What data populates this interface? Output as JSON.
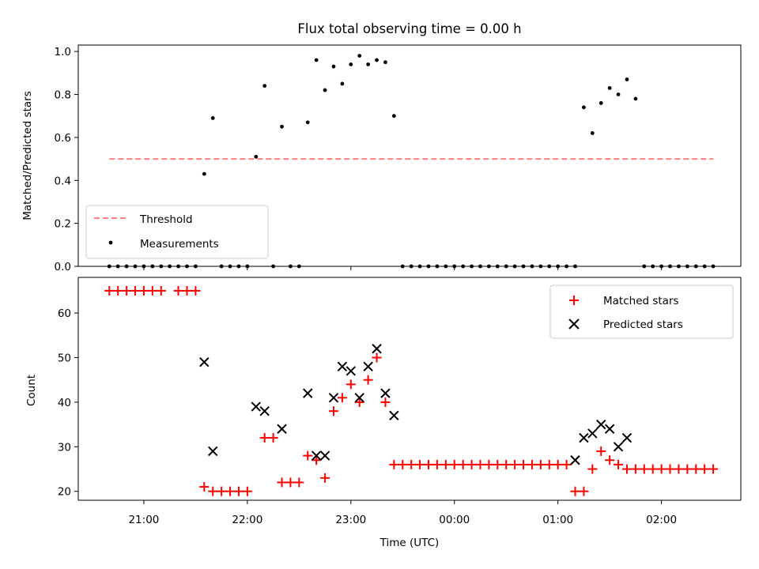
{
  "chart_data": [
    {
      "type": "scatter",
      "title": "Flux total observing time = 0.00 h",
      "xlabel": "",
      "ylabel": "Matched/Predicted stars",
      "ylim": [
        0,
        1.03
      ],
      "y_ticks": [
        "0.0",
        "0.2",
        "0.4",
        "0.6",
        "0.8",
        "1.0"
      ],
      "legend_position": "lower-left",
      "colors": {
        "threshold": "#ff7f7f",
        "measurements": "#000000"
      },
      "threshold": {
        "name": "Threshold",
        "y": 0.5,
        "x_start": "20:40",
        "x_end": "02:30"
      },
      "series": [
        {
          "name": "Measurements",
          "x": [
            "20:40",
            "20:45",
            "20:50",
            "20:55",
            "21:00",
            "21:05",
            "21:10",
            "21:15",
            "21:20",
            "21:25",
            "21:30",
            "21:35",
            "21:40",
            "21:45",
            "21:50",
            "21:55",
            "22:00",
            "22:05",
            "22:10",
            "22:15",
            "22:20",
            "22:25",
            "22:30",
            "22:35",
            "22:40",
            "22:45",
            "22:50",
            "22:55",
            "23:00",
            "23:05",
            "23:10",
            "23:15",
            "23:20",
            "23:25",
            "23:30",
            "23:35",
            "23:40",
            "23:45",
            "23:50",
            "23:55",
            "00:00",
            "00:05",
            "00:10",
            "00:15",
            "00:20",
            "00:25",
            "00:30",
            "00:35",
            "00:40",
            "00:45",
            "00:50",
            "00:55",
            "01:00",
            "01:05",
            "01:10",
            "01:15",
            "01:20",
            "01:25",
            "01:30",
            "01:35",
            "01:40",
            "01:45",
            "01:50",
            "01:55",
            "02:00",
            "02:05",
            "02:10",
            "02:15",
            "02:20",
            "02:25",
            "02:30"
          ],
          "y": [
            0.0,
            0.0,
            0.0,
            0.0,
            0.0,
            0.0,
            0.0,
            0.0,
            0.0,
            0.0,
            0.0,
            0.43,
            0.69,
            0.0,
            0.0,
            0.0,
            0.0,
            0.51,
            0.84,
            0.0,
            0.65,
            0.0,
            0.0,
            0.67,
            0.96,
            0.82,
            0.93,
            0.85,
            0.94,
            0.98,
            0.94,
            0.96,
            0.95,
            0.7,
            0.0,
            0.0,
            0.0,
            0.0,
            0.0,
            0.0,
            0.0,
            0.0,
            0.0,
            0.0,
            0.0,
            0.0,
            0.0,
            0.0,
            0.0,
            0.0,
            0.0,
            0.0,
            0.0,
            0.0,
            0.0,
            0.74,
            0.62,
            0.76,
            0.83,
            0.8,
            0.87,
            0.78,
            0.0,
            0.0,
            0.0,
            0.0,
            0.0,
            0.0,
            0.0,
            0.0,
            0.0
          ]
        }
      ]
    },
    {
      "type": "scatter",
      "xlabel": "Time (UTC)",
      "ylabel": "Count",
      "ylim": [
        18,
        68
      ],
      "y_ticks": [
        "20",
        "30",
        "40",
        "50",
        "60"
      ],
      "x_ticks": [
        "21:00",
        "22:00",
        "23:00",
        "00:00",
        "01:00",
        "02:00"
      ],
      "legend_position": "top-right",
      "colors": {
        "matched": "#ff0000",
        "predicted": "#000000"
      },
      "series": [
        {
          "name": "Matched stars",
          "points": [
            [
              "20:40",
              65
            ],
            [
              "20:45",
              65
            ],
            [
              "20:50",
              65
            ],
            [
              "20:55",
              65
            ],
            [
              "21:00",
              65
            ],
            [
              "21:05",
              65
            ],
            [
              "21:10",
              65
            ],
            [
              "21:20",
              65
            ],
            [
              "21:25",
              65
            ],
            [
              "21:30",
              65
            ],
            [
              "21:35",
              21
            ],
            [
              "21:40",
              20
            ],
            [
              "21:45",
              20
            ],
            [
              "21:50",
              20
            ],
            [
              "21:55",
              20
            ],
            [
              "22:00",
              20
            ],
            [
              "22:10",
              32
            ],
            [
              "22:15",
              32
            ],
            [
              "22:20",
              22
            ],
            [
              "22:25",
              22
            ],
            [
              "22:30",
              22
            ],
            [
              "22:35",
              28
            ],
            [
              "22:40",
              27
            ],
            [
              "22:45",
              23
            ],
            [
              "22:50",
              38
            ],
            [
              "22:55",
              41
            ],
            [
              "23:00",
              44
            ],
            [
              "23:05",
              40
            ],
            [
              "23:10",
              45
            ],
            [
              "23:15",
              50
            ],
            [
              "23:20",
              40
            ],
            [
              "23:25",
              26
            ],
            [
              "23:30",
              26
            ],
            [
              "23:35",
              26
            ],
            [
              "23:40",
              26
            ],
            [
              "23:45",
              26
            ],
            [
              "23:50",
              26
            ],
            [
              "23:55",
              26
            ],
            [
              "00:00",
              26
            ],
            [
              "00:05",
              26
            ],
            [
              "00:10",
              26
            ],
            [
              "00:15",
              26
            ],
            [
              "00:20",
              26
            ],
            [
              "00:25",
              26
            ],
            [
              "00:30",
              26
            ],
            [
              "00:35",
              26
            ],
            [
              "00:40",
              26
            ],
            [
              "00:45",
              26
            ],
            [
              "00:50",
              26
            ],
            [
              "00:55",
              26
            ],
            [
              "01:00",
              26
            ],
            [
              "01:05",
              26
            ],
            [
              "01:10",
              20
            ],
            [
              "01:15",
              20
            ],
            [
              "01:20",
              25
            ],
            [
              "01:25",
              29
            ],
            [
              "01:30",
              27
            ],
            [
              "01:35",
              26
            ],
            [
              "01:40",
              25
            ],
            [
              "01:45",
              25
            ],
            [
              "01:50",
              25
            ],
            [
              "01:55",
              25
            ],
            [
              "02:00",
              25
            ],
            [
              "02:05",
              25
            ],
            [
              "02:10",
              25
            ],
            [
              "02:15",
              25
            ],
            [
              "02:20",
              25
            ],
            [
              "02:25",
              25
            ],
            [
              "02:30",
              25
            ]
          ]
        },
        {
          "name": "Predicted stars",
          "points": [
            [
              "21:35",
              49
            ],
            [
              "21:40",
              29
            ],
            [
              "22:05",
              39
            ],
            [
              "22:10",
              38
            ],
            [
              "22:20",
              34
            ],
            [
              "22:35",
              42
            ],
            [
              "22:40",
              28
            ],
            [
              "22:45",
              28
            ],
            [
              "22:50",
              41
            ],
            [
              "22:55",
              48
            ],
            [
              "23:00",
              47
            ],
            [
              "23:05",
              41
            ],
            [
              "23:10",
              48
            ],
            [
              "23:15",
              52
            ],
            [
              "23:20",
              42
            ],
            [
              "23:25",
              37
            ],
            [
              "01:10",
              27
            ],
            [
              "01:15",
              32
            ],
            [
              "01:20",
              33
            ],
            [
              "01:25",
              35
            ],
            [
              "01:30",
              34
            ],
            [
              "01:35",
              30
            ],
            [
              "01:40",
              32
            ]
          ]
        }
      ]
    }
  ]
}
